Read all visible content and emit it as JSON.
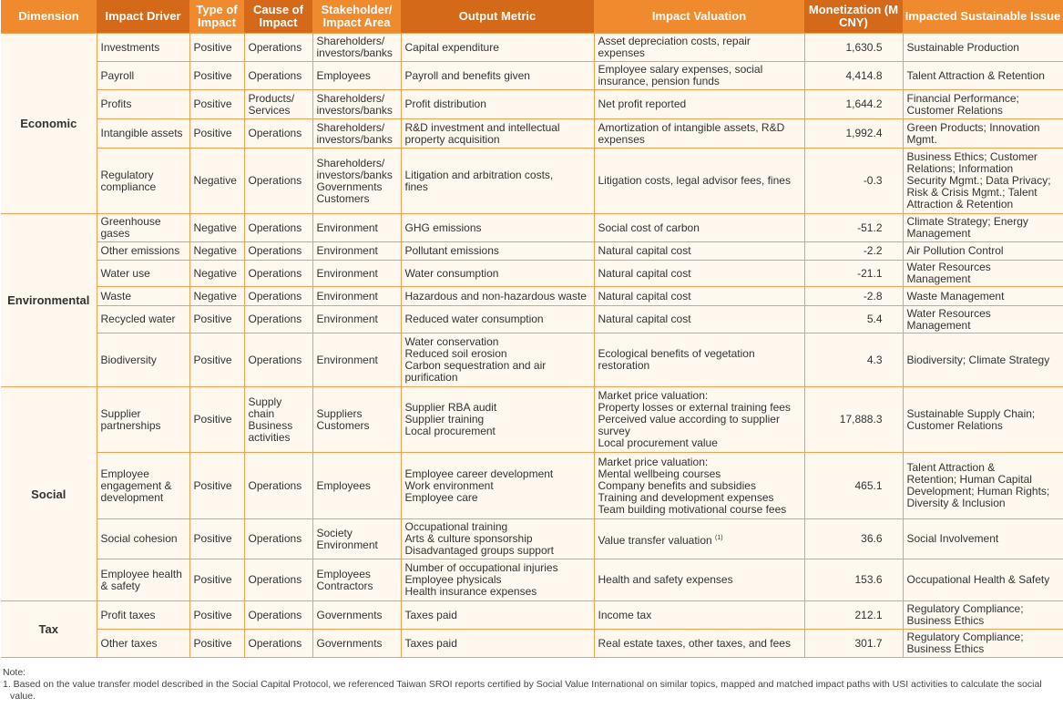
{
  "headers": [
    "Dimension",
    "Impact Driver",
    "Type of Impact",
    "Cause of Impact",
    "Stakeholder/ Impact Area",
    "Output Metric",
    "Impact Valuation",
    "Monetization (M CNY)",
    "Impacted Sustainable Issue"
  ],
  "groups": [
    {
      "dimension": "Economic",
      "rows": [
        {
          "driver": "Investments",
          "type": "Positive",
          "cause": "Operations",
          "stakeholder": "Shareholders/\ninvestors/banks",
          "metric": "Capital expenditure",
          "valuation": "Asset depreciation costs, repair\nexpenses",
          "value": "1,630.5",
          "issue": "Sustainable Production",
          "h": 31
        },
        {
          "driver": "Payroll",
          "type": "Positive",
          "cause": "Operations",
          "stakeholder": "Employees",
          "metric": "Payroll and benefits given",
          "valuation": "Employee salary expenses, social\ninsurance, pension funds",
          "value": "4,414.8",
          "issue": "Talent Attraction & Retention",
          "h": 31
        },
        {
          "driver": "Profits",
          "type": "Positive",
          "cause": "Products/\nServices",
          "stakeholder": "Shareholders/\ninvestors/banks",
          "metric": "Profit distribution",
          "valuation": "Net profit reported",
          "value": "1,644.2",
          "issue": "Financial Performance;\nCustomer Relations",
          "h": 32
        },
        {
          "driver": "Intangible assets",
          "type": "Positive",
          "cause": "Operations",
          "stakeholder": "Shareholders/\ninvestors/banks",
          "metric": "R&D investment and intellectual\nproperty acquisition",
          "valuation": "Amortization of intangible assets, R&D\nexpenses",
          "value": "1,992.4",
          "issue": "Green Products; Innovation\nMgmt.",
          "h": 32
        },
        {
          "driver": "Regulatory\ncompliance",
          "type": "Negative",
          "cause": "Operations",
          "stakeholder": "Shareholders/\ninvestors/banks\nGovernments\nCustomers",
          "metric": "Litigation and arbitration costs,\nfines",
          "valuation": "Litigation costs, legal advisor fees, fines",
          "value": "-0.3",
          "issue": "Business Ethics; Customer\nRelations; Information\nSecurity Mgmt.; Data Privacy;\nRisk & Crisis Mgmt.; Talent\nAttraction & Retention",
          "h": 72
        }
      ]
    },
    {
      "dimension": "Environmental",
      "rows": [
        {
          "driver": "Greenhouse\ngases",
          "type": "Negative",
          "cause": "Operations",
          "stakeholder": "Environment",
          "metric": "GHG emissions",
          "valuation": "Social cost of carbon",
          "value": "-51.2",
          "issue": "Climate Strategy; Energy\nManagement",
          "h": 31
        },
        {
          "driver": "Other emissions",
          "type": "Negative",
          "cause": "Operations",
          "stakeholder": "Environment",
          "metric": "Pollutant emissions",
          "valuation": "Natural capital cost",
          "value": "-2.2",
          "issue": "Air Pollution Control",
          "h": 20
        },
        {
          "driver": "Water use",
          "type": "Negative",
          "cause": "Operations",
          "stakeholder": "Environment",
          "metric": "Water consumption",
          "valuation": "Natural capital cost",
          "value": "-21.1",
          "issue": "Water Resources\nManagement",
          "h": 29
        },
        {
          "driver": "Waste",
          "type": "Negative",
          "cause": "Operations",
          "stakeholder": "Environment",
          "metric": "Hazardous and non-hazardous waste",
          "valuation": "Natural capital cost",
          "value": "-2.8",
          "issue": "Waste Management",
          "h": 21
        },
        {
          "driver": "Recycled water",
          "type": "Positive",
          "cause": "Operations",
          "stakeholder": "Environment",
          "metric": "Reduced water consumption",
          "valuation": "Natural capital cost",
          "value": "5.4",
          "issue": "Water Resources\nManagement",
          "h": 30
        },
        {
          "driver": "Biodiversity",
          "type": "Positive",
          "cause": "Operations",
          "stakeholder": "Environment",
          "metric": "Water conservation\nReduced soil erosion\nCarbon sequestration and air\npurification",
          "valuation": "Ecological benefits of vegetation\nrestoration",
          "value": "4.3",
          "issue": "Biodiversity; Climate Strategy",
          "h": 59
        }
      ]
    },
    {
      "dimension": "Social",
      "rows": [
        {
          "driver": "Supplier\npartnerships",
          "type": "Positive",
          "cause": "Supply\nchain\nBusiness\nactivities",
          "stakeholder": "Suppliers\nCustomers",
          "metric": "Supplier RBA audit\nSupplier training\nLocal procurement",
          "valuation": "Market price valuation:\nProperty losses or external training fees\nPerceived value according to supplier\nsurvey\nLocal procurement value",
          "value": "17,888.3",
          "issue": "Sustainable Supply Chain;\nCustomer Relations",
          "h": 72
        },
        {
          "driver": "Employee\nengagement &\ndevelopment",
          "type": "Positive",
          "cause": "Operations",
          "stakeholder": "Employees",
          "metric": "Employee career development\nWork environment\nEmployee care",
          "valuation": "Market price valuation:\nMental wellbeing courses\nCompany benefits and subsidies\nTraining and development expenses\nTeam building motivational course fees",
          "value": "465.1",
          "issue": "Talent Attraction &\nRetention; Human Capital\nDevelopment; Human Rights;\nDiversity & Inclusion",
          "h": 73
        },
        {
          "driver": "Social cohesion",
          "type": "Positive",
          "cause": "Operations",
          "stakeholder": "Society\nEnvironment",
          "metric": "Occupational training\nArts & culture sponsorship\nDisadvantaged groups support",
          "valuation": "Value transfer valuation",
          "valuation_note": "(1)",
          "value": "36.6",
          "issue": "Social Involvement",
          "h": 44
        },
        {
          "driver": "Employee health\n& safety",
          "type": "Positive",
          "cause": "Operations",
          "stakeholder": "Employees\nContractors",
          "metric": "Number of occupational injuries\nEmployee physicals\nHealth insurance expenses",
          "valuation": "Health and safety expenses",
          "value": "153.6",
          "issue": "Occupational Health & Safety",
          "h": 46
        }
      ]
    },
    {
      "dimension": "Tax",
      "rows": [
        {
          "driver": "Profit taxes",
          "type": "Positive",
          "cause": "Operations",
          "stakeholder": "Governments",
          "metric": "Taxes paid",
          "valuation": "Income tax",
          "value": "212.1",
          "issue": "Regulatory Compliance;\nBusiness Ethics",
          "h": 31
        },
        {
          "driver": "Other taxes",
          "type": "Positive",
          "cause": "Operations",
          "stakeholder": "Governments",
          "metric": "Taxes paid",
          "valuation": "Real estate taxes, other taxes, and fees",
          "value": "301.7",
          "issue": "Regulatory Compliance;\nBusiness Ethics",
          "h": 31
        }
      ]
    }
  ],
  "note": {
    "title": "Note:",
    "items": [
      "1. Based on the value transfer model described in the Social Capital Protocol, we referenced Taiwan SROI reports certified by Social Value International on similar topics, mapped and matched impact paths with USI activities to calculate the social value."
    ]
  },
  "colors": {
    "header_light": "#ef8a2e",
    "header_dark": "#d5691a",
    "border": "#f0a054",
    "background": "#fff8ef"
  }
}
